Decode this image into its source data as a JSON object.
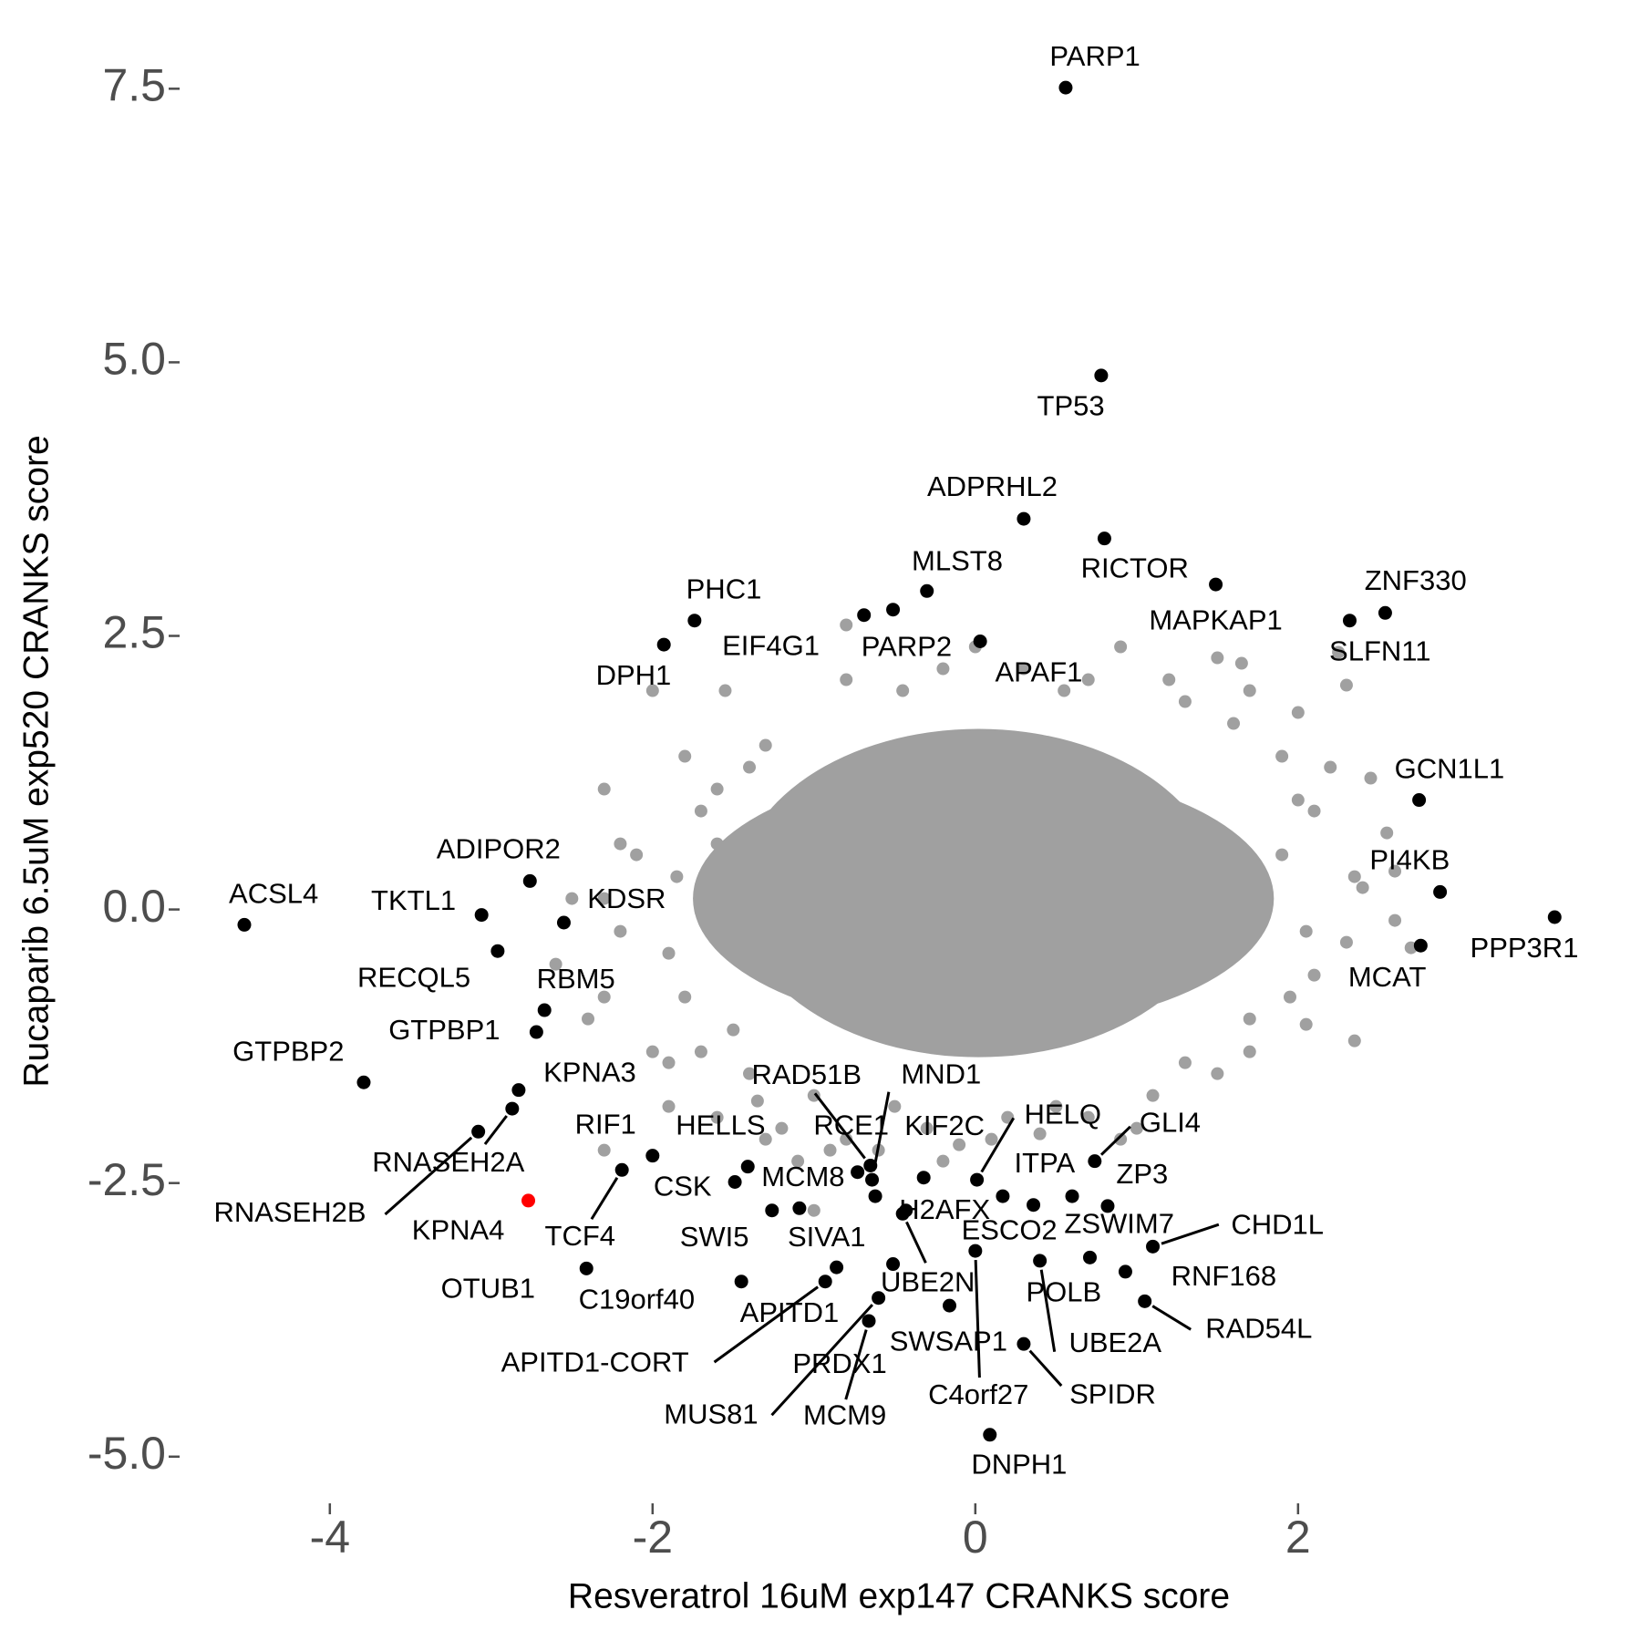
{
  "chart_data": {
    "type": "scatter",
    "x_label": "Resveratrol 16uM exp147 CRANKS score",
    "y_label": "Rucaparib 6.5uM exp520 CRANKS score",
    "xlim": [
      -4.9,
      3.95
    ],
    "ylim": [
      -5.4,
      8.0
    ],
    "xticks": [
      -4,
      -2,
      0,
      2
    ],
    "yticks": [
      7.5,
      {
        "value": 5,
        "label": "5.0"
      },
      2.5,
      {
        "value": 0,
        "label": "0.0"
      },
      -2.5,
      {
        "value": -5,
        "label": "-5.0"
      }
    ],
    "grid": false,
    "series": [
      {
        "color": "#a0a0a0",
        "x": [
          -2.0,
          -1.55,
          -1.8,
          -1.6,
          -2.3,
          -2.2,
          -2.1,
          -2.5,
          -2.3,
          -2.2,
          -2.3,
          -2.0,
          -2.3,
          -1.9,
          -1.7,
          -1.4,
          -1.6,
          -1.35,
          -1.3,
          -1.1,
          -0.9,
          -0.8,
          -1.0,
          -0.6,
          -0.2,
          -0.3,
          0.1,
          0.4,
          0.7,
          0.9,
          1.1,
          1.5,
          1.7,
          2.05,
          2.35,
          2.1,
          2.3,
          2.05,
          2.4,
          2.6,
          2.55,
          2.45,
          2.2,
          2.0,
          2.25,
          2.3,
          1.65,
          1.7,
          1.2,
          0.9,
          0.55,
          0.3,
          0.0,
          -0.2,
          -0.45,
          -0.8,
          -0.8,
          -1.3,
          -1.4,
          -1.7,
          1.6,
          1.9,
          2.0,
          2.1,
          1.9,
          1.95,
          1.7,
          1.3,
          0.5,
          -0.5,
          -1.0,
          -1.5,
          -1.8,
          -1.9,
          -1.85,
          -1.6,
          -2.6,
          -2.4,
          -1.9,
          -1.2,
          1.3,
          1.5,
          0.7,
          2.7,
          2.6,
          2.35,
          1.0,
          0.2,
          -0.1
        ],
        "y": [
          2.0,
          2.0,
          1.4,
          1.1,
          1.1,
          0.6,
          0.5,
          0.1,
          0.1,
          -0.2,
          -0.8,
          -1.3,
          -2.2,
          -1.8,
          -1.3,
          -1.5,
          -1.9,
          -1.75,
          -2.1,
          -2.3,
          -2.2,
          -2.1,
          -2.75,
          -2.2,
          -2.3,
          -2.0,
          -2.1,
          -2.05,
          -1.9,
          -2.1,
          -1.7,
          -1.5,
          -1.3,
          -1.05,
          -1.2,
          -0.6,
          -0.3,
          -0.2,
          0.2,
          0.35,
          0.7,
          1.2,
          1.3,
          1.8,
          2.35,
          2.05,
          2.25,
          2.0,
          2.1,
          2.4,
          2.0,
          2.2,
          2.4,
          2.2,
          2.0,
          2.1,
          2.6,
          1.5,
          1.3,
          0.9,
          1.7,
          1.4,
          1.0,
          0.9,
          0.5,
          -0.8,
          -1.0,
          -1.4,
          -1.8,
          -1.8,
          -1.7,
          -1.1,
          -0.8,
          -0.4,
          0.3,
          0.6,
          -0.5,
          -1.0,
          -1.4,
          -2.0,
          1.9,
          2.3,
          2.1,
          -0.35,
          -0.1,
          0.3,
          -2.0,
          -1.9,
          -2.15
        ]
      },
      {
        "color": "#000000",
        "labels": [
          "PARP1",
          "TP53",
          "ADPRHL2",
          "RICTOR",
          "MAPKAP1",
          "ZNF330",
          "SLFN11",
          "MLST8",
          "PARP2",
          "EIF4G1",
          "APAF1",
          "PHC1",
          "DPH1",
          "GCN1L1",
          "PI4KB",
          "PPP3R1",
          "MCAT",
          "ACSL4",
          "TKTL1",
          "ADIPOR2",
          "KDSR",
          "RECQL5",
          "RBM5",
          "GTPBP1",
          "GTPBP2",
          "KPNA3",
          "RNASEH2A",
          "RNASEH2B",
          "RIF1",
          "TCF4",
          "OTUB1",
          "HELLS",
          "CSK",
          "SWI5",
          "SIVA1",
          "C19orf40",
          "MCM8",
          "RAD51B",
          "MND1",
          "RCE1",
          "KIF2C",
          "H2AFX",
          "UBE2N",
          "HELQ",
          "ITPA",
          "GLI4",
          "ZP3",
          "ESCO2",
          "ZSWIM7",
          "CHD1L",
          "RNF168",
          "RAD54L",
          "POLB",
          "UBE2A",
          "C4orf27",
          "SWSAP1",
          "SPIDR",
          "DNPH1",
          "APITD1",
          "APITD1-CORT",
          "MUS81",
          "PRDX1",
          "MCM9"
        ],
        "x": [
          0.56,
          0.78,
          0.3,
          0.8,
          1.49,
          2.54,
          2.32,
          -0.3,
          -0.51,
          -0.69,
          0.03,
          -1.74,
          -1.93,
          2.75,
          2.88,
          3.59,
          2.76,
          -4.53,
          -3.06,
          -2.76,
          -2.55,
          -2.96,
          -2.67,
          -2.72,
          -3.79,
          -2.83,
          -2.87,
          -3.08,
          -2.0,
          -2.19,
          -2.41,
          -1.41,
          -1.49,
          -1.26,
          -1.09,
          -1.45,
          -0.73,
          -0.65,
          -0.64,
          -0.62,
          -0.32,
          -0.43,
          -0.45,
          0.01,
          0.17,
          0.74,
          0.82,
          0.36,
          0.6,
          1.1,
          0.93,
          1.05,
          0.71,
          0.4,
          0.0,
          -0.16,
          0.3,
          0.09,
          -0.86,
          -0.93,
          -0.6,
          -0.51,
          -0.66
        ],
        "y": [
          7.51,
          4.88,
          3.57,
          3.39,
          2.97,
          2.71,
          2.64,
          2.91,
          2.74,
          2.69,
          2.45,
          2.64,
          2.42,
          1.0,
          0.16,
          -0.07,
          -0.33,
          -0.14,
          -0.05,
          0.26,
          -0.12,
          -0.38,
          -0.92,
          -1.12,
          -1.58,
          -1.65,
          -1.82,
          -2.03,
          -2.25,
          -2.38,
          -3.28,
          -2.35,
          -2.49,
          -2.75,
          -2.73,
          -3.4,
          -2.4,
          -2.34,
          -2.47,
          -2.62,
          -2.45,
          -2.75,
          -2.78,
          -2.47,
          -2.62,
          -2.3,
          -2.71,
          -2.7,
          -2.62,
          -3.08,
          -3.31,
          -3.58,
          -3.18,
          -3.21,
          -3.12,
          -3.62,
          -3.97,
          -4.8,
          -3.27,
          -3.4,
          -3.55,
          -3.24,
          -3.76
        ]
      },
      {
        "color": "#ff0000",
        "labels": [
          "KPNA4"
        ],
        "x": [
          -2.77
        ],
        "y": [
          -2.66
        ]
      }
    ]
  }
}
